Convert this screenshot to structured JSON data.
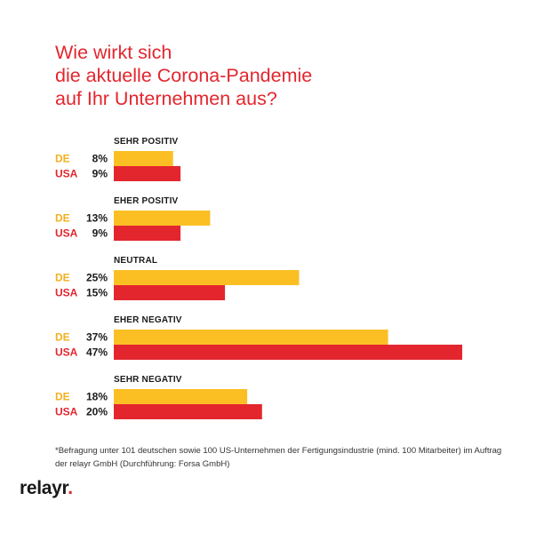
{
  "title_lines": [
    "Wie wirkt sich",
    "die aktuelle Corona-Pandemie",
    "auf Ihr Unternehmen aus?"
  ],
  "colors": {
    "title": "#e3262e",
    "de": "#fbbf24",
    "usa": "#e3262e",
    "de_label": "#f2b01e"
  },
  "chart_data": {
    "type": "bar",
    "orientation": "horizontal",
    "title": "Wie wirkt sich die aktuelle Corona-Pandemie auf Ihr Unternehmen aus?",
    "categories": [
      "SEHR POSITIV",
      "EHER POSITIV",
      "NEUTRAL",
      "EHER NEGATIV",
      "SEHR NEGATIV"
    ],
    "series": [
      {
        "name": "DE",
        "values": [
          8,
          13,
          25,
          37,
          18
        ]
      },
      {
        "name": "USA",
        "values": [
          9,
          9,
          15,
          47,
          20
        ]
      }
    ],
    "unit": "%",
    "xlim": [
      0,
      47
    ],
    "grid": false,
    "legend": "inline-left"
  },
  "footnote": "*Befragung unter 101 deutschen sowie 100 US-Unternehmen der Fertigungsindustrie (mind. 100 Mitarbeiter) im Auftrag der relayr GmbH (Durchführung: Forsa GmbH)",
  "logo": {
    "name": "relayr",
    "dot": "."
  }
}
